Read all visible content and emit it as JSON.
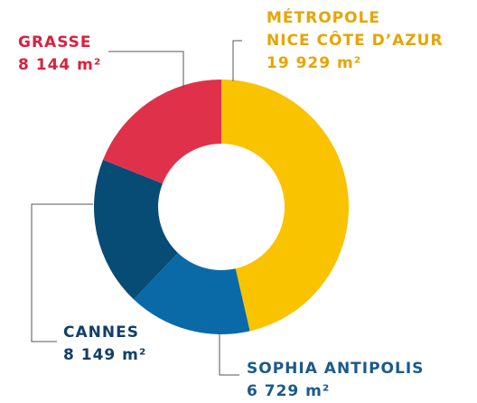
{
  "chart_data": {
    "type": "donut",
    "categories": [
      "MÉTROPOLE\nNICE CÔTE D’AZUR",
      "SOPHIA ANTIPOLIS",
      "CANNES",
      "GRASSE"
    ],
    "values": [
      19929,
      6729,
      8149,
      8144
    ],
    "value_labels": [
      "19 929 m²",
      "6 729 m²",
      "8 149 m²",
      "8 144 m²"
    ],
    "colors": [
      "#f9c300",
      "#0a6aa8",
      "#064c75",
      "#e0314b"
    ],
    "label_colors": [
      "#e8a400",
      "#1a5a8a",
      "#143f66",
      "#d8213e"
    ]
  }
}
